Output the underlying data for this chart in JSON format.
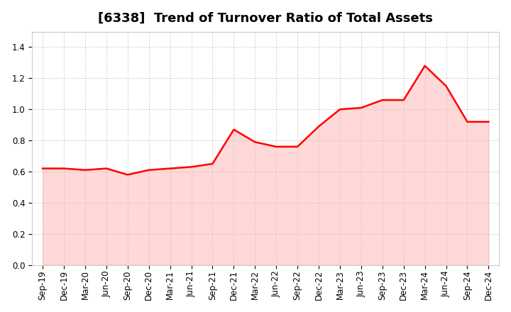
{
  "title": "[6338]  Trend of Turnover Ratio of Total Assets",
  "x_labels": [
    "Sep-19",
    "Dec-19",
    "Mar-20",
    "Jun-20",
    "Sep-20",
    "Dec-20",
    "Mar-21",
    "Jun-21",
    "Sep-21",
    "Dec-21",
    "Mar-22",
    "Jun-22",
    "Sep-22",
    "Dec-22",
    "Mar-23",
    "Jun-23",
    "Sep-23",
    "Dec-23",
    "Mar-24",
    "Jun-24",
    "Sep-24",
    "Dec-24"
  ],
  "y_values": [
    0.62,
    0.62,
    0.61,
    0.62,
    0.58,
    0.61,
    0.62,
    0.63,
    0.65,
    0.87,
    0.79,
    0.76,
    0.76,
    0.89,
    1.0,
    1.01,
    1.06,
    1.06,
    1.28,
    1.15,
    0.92,
    0.92
  ],
  "line_color": "#FF0000",
  "fill_color": "#FFAAAA",
  "fill_alpha": 0.45,
  "ylim": [
    0.0,
    1.5
  ],
  "yticks": [
    0.0,
    0.2,
    0.4,
    0.6,
    0.8,
    1.0,
    1.2,
    1.4
  ],
  "background_color": "#FFFFFF",
  "plot_bg_color": "#FFFFFF",
  "grid_color": "#BBBBBB",
  "title_fontsize": 13,
  "tick_fontsize": 8.5,
  "line_width": 1.8
}
